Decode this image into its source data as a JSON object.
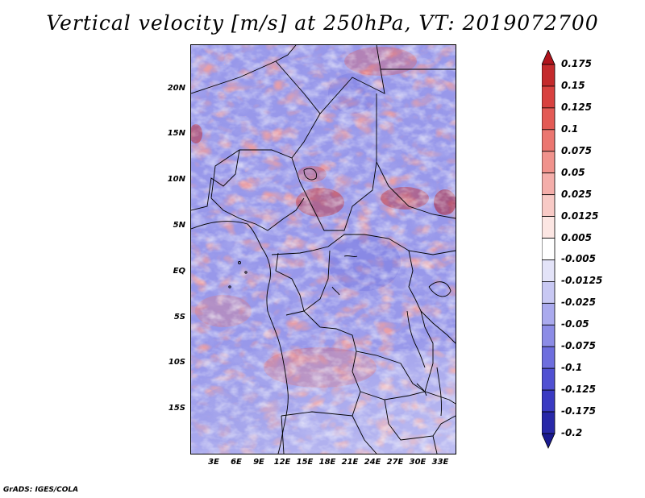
{
  "title": "Vertical velocity [m/s] at 250hPa, VT: 2019072700",
  "footer": "GrADS: IGES/COLA",
  "map": {
    "lat_labels": [
      "20N",
      "15N",
      "10N",
      "5N",
      "EQ",
      "5S",
      "10S",
      "15S"
    ],
    "lon_labels": [
      "3E",
      "6E",
      "9E",
      "12E",
      "15E",
      "18E",
      "21E",
      "24E",
      "27E",
      "30E",
      "33E"
    ]
  },
  "colorbar": {
    "levels": [
      "0.175",
      "0.15",
      "0.125",
      "0.1",
      "0.075",
      "0.05",
      "0.025",
      "0.0125",
      "0.005",
      "-0.005",
      "-0.0125",
      "-0.025",
      "-0.05",
      "-0.075",
      "-0.1",
      "-0.125",
      "-0.175",
      "-0.2"
    ],
    "colors": [
      "#b0141c",
      "#c42a2c",
      "#d8413f",
      "#e35a55",
      "#eb7670",
      "#f0928c",
      "#f4aeaa",
      "#f8cac6",
      "#fce6e3",
      "#ffffff",
      "#e3e3f8",
      "#c8c8f3",
      "#aaaaee",
      "#8c8ce6",
      "#6e6ede",
      "#5050d2",
      "#3a3ac2",
      "#2828a8",
      "#1a1a90"
    ]
  }
}
